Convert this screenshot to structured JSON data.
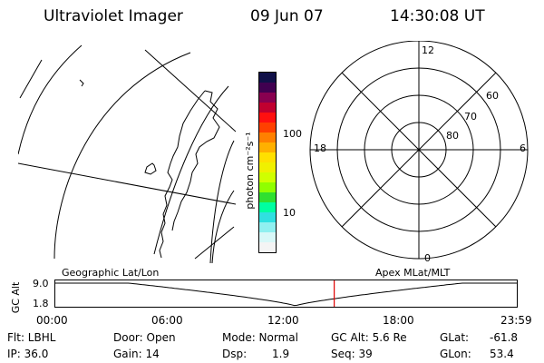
{
  "header": {
    "instrument": "Ultraviolet Imager",
    "date": "09 Jun 07",
    "time": "14:30:08 UT"
  },
  "colorbar": {
    "label": "photon cm⁻²s⁻¹",
    "ticks": [
      "100",
      "10"
    ],
    "colors": [
      "#101048",
      "#400050",
      "#880050",
      "#c00030",
      "#ff1010",
      "#ff4000",
      "#ff8000",
      "#ffb000",
      "#ffe000",
      "#f0f000",
      "#d0ff00",
      "#90ff00",
      "#30e030",
      "#00ffa0",
      "#30e0e0",
      "#90f0f0",
      "#d8f8f8",
      "#f4f4f4"
    ]
  },
  "polar": {
    "mlt_labels": {
      "top": "12",
      "left": "18",
      "right": "6",
      "bottom": "0"
    },
    "lat_labels": [
      "60",
      "70",
      "80"
    ]
  },
  "timeline": {
    "ylabel": "GC Alt",
    "ymax": "9.0",
    "ymin": "1.8",
    "left_title": "Geographic Lat/Lon",
    "right_title": "Apex MLat/MLT",
    "ticks": [
      "00:00",
      "06:00",
      "12:00",
      "18:00",
      "23:59"
    ],
    "current_time_hours": 14.5,
    "marker_color": "#e00000"
  },
  "status": {
    "flt": "Flt: LBHL",
    "ip": "IP: 36.0",
    "door": "Door: Open",
    "gain": "Gain: 14",
    "mode": "Mode: Normal",
    "dsp_label": "Dsp:",
    "dsp_value": "1.9",
    "gcalt": "GC Alt: 5.6 Re",
    "seq": "Seq: 39",
    "glat_label": "GLat:",
    "glat_value": "-61.8",
    "glon_label": "GLon:",
    "glon_value": "53.4"
  }
}
